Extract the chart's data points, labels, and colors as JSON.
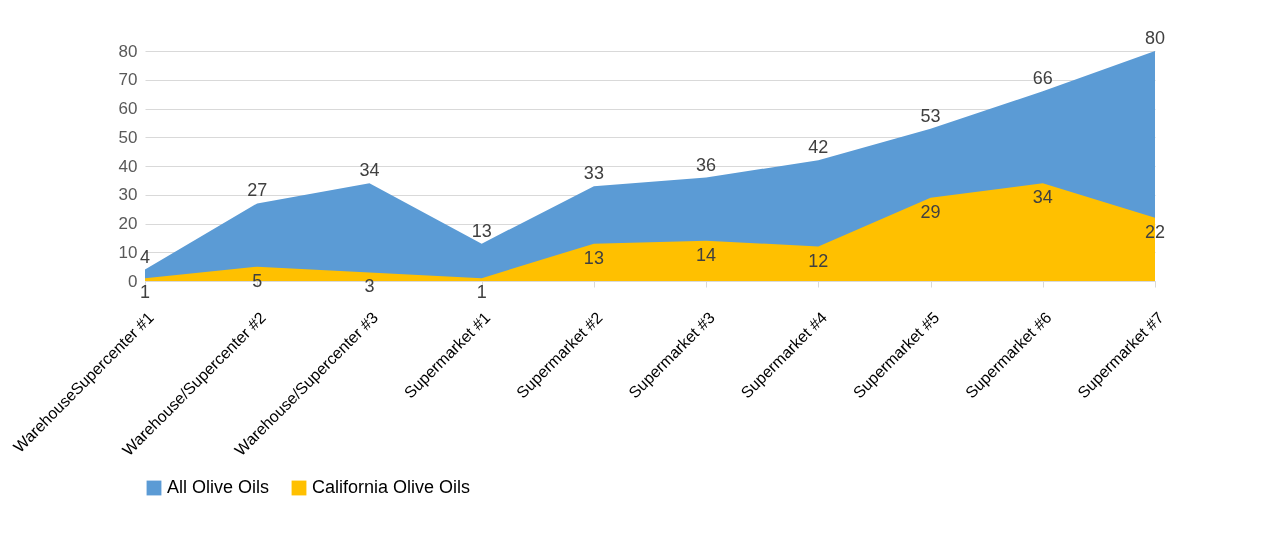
{
  "chart_data": {
    "type": "area",
    "categories": [
      "WarehouseSupercenter #1",
      "Warehouse/Supercenter #2",
      "Warehouse/Supercenter #3",
      "Supermarket #1",
      "Supermarket #2",
      "Supermarket #3",
      "Supermarket #4",
      "Supermarket #5",
      "Supermarket #6",
      "Supermarket #7"
    ],
    "series": [
      {
        "name": "All Olive Oils",
        "color": "#5b9bd5",
        "values": [
          4,
          27,
          34,
          13,
          33,
          36,
          42,
          53,
          66,
          80
        ]
      },
      {
        "name": "California Olive Oils",
        "color": "#ffc000",
        "values": [
          1,
          5,
          3,
          1,
          13,
          14,
          12,
          29,
          34,
          22
        ]
      }
    ],
    "ylim": [
      0,
      80
    ],
    "yticks": [
      0,
      10,
      20,
      30,
      40,
      50,
      60,
      70,
      80
    ],
    "grid": "y",
    "legend": "bottom",
    "data_labels": true
  }
}
